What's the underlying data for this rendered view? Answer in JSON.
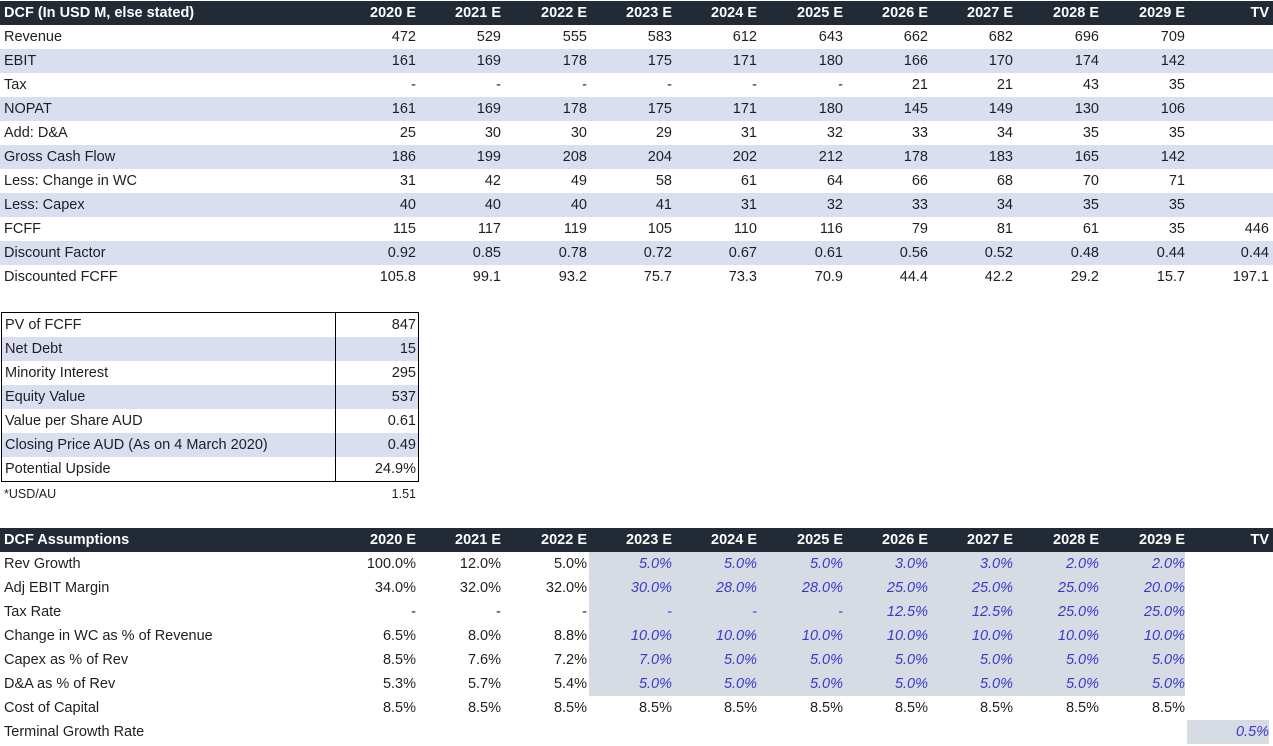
{
  "dcf": {
    "header": [
      "DCF (In USD M, else stated)",
      "2020 E",
      "2021 E",
      "2022 E",
      "2023 E",
      "2024 E",
      "2025 E",
      "2026 E",
      "2027 E",
      "2028 E",
      "2029 E",
      "TV"
    ],
    "rows": [
      {
        "label": "Revenue",
        "values": [
          "472",
          "529",
          "555",
          "583",
          "612",
          "643",
          "662",
          "682",
          "696",
          "709",
          ""
        ]
      },
      {
        "label": "EBIT",
        "values": [
          "161",
          "169",
          "178",
          "175",
          "171",
          "180",
          "166",
          "170",
          "174",
          "142",
          ""
        ]
      },
      {
        "label": "Tax",
        "values": [
          "-",
          "-",
          "-",
          "-",
          "-",
          "-",
          "21",
          "21",
          "43",
          "35",
          ""
        ]
      },
      {
        "label": "NOPAT",
        "values": [
          "161",
          "169",
          "178",
          "175",
          "171",
          "180",
          "145",
          "149",
          "130",
          "106",
          ""
        ]
      },
      {
        "label": "Add: D&A",
        "values": [
          "25",
          "30",
          "30",
          "29",
          "31",
          "32",
          "33",
          "34",
          "35",
          "35",
          ""
        ]
      },
      {
        "label": "Gross Cash Flow",
        "values": [
          "186",
          "199",
          "208",
          "204",
          "202",
          "212",
          "178",
          "183",
          "165",
          "142",
          ""
        ]
      },
      {
        "label": "Less: Change in WC",
        "values": [
          "31",
          "42",
          "49",
          "58",
          "61",
          "64",
          "66",
          "68",
          "70",
          "71",
          ""
        ]
      },
      {
        "label": "Less: Capex",
        "values": [
          "40",
          "40",
          "40",
          "41",
          "31",
          "32",
          "33",
          "34",
          "35",
          "35",
          ""
        ]
      },
      {
        "label": "FCFF",
        "values": [
          "115",
          "117",
          "119",
          "105",
          "110",
          "116",
          "79",
          "81",
          "61",
          "35",
          "446"
        ]
      },
      {
        "label": "Discount Factor",
        "values": [
          "0.92",
          "0.85",
          "0.78",
          "0.72",
          "0.67",
          "0.61",
          "0.56",
          "0.52",
          "0.48",
          "0.44",
          "0.44"
        ]
      },
      {
        "label": "Discounted FCFF",
        "values": [
          "105.8",
          "99.1",
          "93.2",
          "75.7",
          "73.3",
          "70.9",
          "44.4",
          "42.2",
          "29.2",
          "15.7",
          "197.1"
        ]
      }
    ]
  },
  "summary": {
    "rows": [
      {
        "label": "PV of FCFF",
        "value": "847"
      },
      {
        "label": "Net Debt",
        "value": "15"
      },
      {
        "label": "Minority Interest",
        "value": "295"
      },
      {
        "label": "Equity Value",
        "value": "537"
      },
      {
        "label": "Value per Share AUD",
        "value": "0.61"
      },
      {
        "label": "Closing Price AUD (As on 4 March 2020)",
        "value": "0.49"
      },
      {
        "label": "Potential Upside",
        "value": "24.9%"
      }
    ],
    "note_label": "*USD/AU",
    "note_value": "1.51"
  },
  "assumptions": {
    "header": [
      "DCF Assumptions",
      "2020 E",
      "2021 E",
      "2022 E",
      "2023 E",
      "2024 E",
      "2025 E",
      "2026 E",
      "2027 E",
      "2028 E",
      "2029 E",
      "TV"
    ],
    "rows": [
      {
        "label": "Rev Growth",
        "values": [
          "100.0%",
          "12.0%",
          "5.0%",
          "5.0%",
          "5.0%",
          "5.0%",
          "3.0%",
          "3.0%",
          "2.0%",
          "2.0%",
          ""
        ]
      },
      {
        "label": "Adj EBIT Margin",
        "values": [
          "34.0%",
          "32.0%",
          "32.0%",
          "30.0%",
          "28.0%",
          "28.0%",
          "25.0%",
          "25.0%",
          "25.0%",
          "20.0%",
          ""
        ]
      },
      {
        "label": "Tax Rate",
        "values": [
          "-",
          "-",
          "-",
          "-",
          "-",
          "-",
          "12.5%",
          "12.5%",
          "25.0%",
          "25.0%",
          ""
        ]
      },
      {
        "label": "Change in WC as % of Revenue",
        "values": [
          "6.5%",
          "8.0%",
          "8.8%",
          "10.0%",
          "10.0%",
          "10.0%",
          "10.0%",
          "10.0%",
          "10.0%",
          "10.0%",
          ""
        ]
      },
      {
        "label": "Capex as % of Rev",
        "values": [
          "8.5%",
          "7.6%",
          "7.2%",
          "7.0%",
          "5.0%",
          "5.0%",
          "5.0%",
          "5.0%",
          "5.0%",
          "5.0%",
          ""
        ]
      },
      {
        "label": "D&A as % of Rev",
        "values": [
          "5.3%",
          "5.7%",
          "5.4%",
          "5.0%",
          "5.0%",
          "5.0%",
          "5.0%",
          "5.0%",
          "5.0%",
          "5.0%",
          ""
        ]
      },
      {
        "label": "Cost of Capital",
        "values": [
          "8.5%",
          "8.5%",
          "8.5%",
          "8.5%",
          "8.5%",
          "8.5%",
          "8.5%",
          "8.5%",
          "8.5%",
          "8.5%",
          ""
        ]
      },
      {
        "label": "Terminal Growth Rate",
        "values": [
          "",
          "",
          "",
          "",
          "",
          "",
          "",
          "",
          "",
          "",
          "0.5%"
        ]
      }
    ]
  },
  "colors": {
    "header_bg": "#222a35",
    "band": "#d9dff0",
    "input_shade": "#d6dbe4",
    "input_text": "#3a3ac8"
  }
}
